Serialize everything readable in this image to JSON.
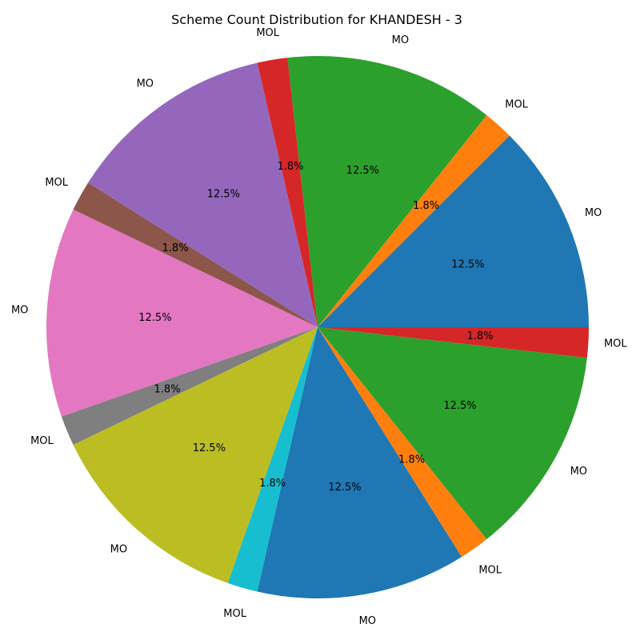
{
  "chart_data": {
    "type": "pie",
    "title": "Scheme Count Distribution for KHANDESH - 3",
    "start_angle_deg": 0,
    "direction": "counterclockwise",
    "slices": [
      {
        "label": "MO",
        "value": 12.5,
        "pct_label": "12.5%",
        "color": "#1f77b4"
      },
      {
        "label": "MOL",
        "value": 1.8,
        "pct_label": "1.8%",
        "color": "#ff7f0e"
      },
      {
        "label": "MO",
        "value": 12.5,
        "pct_label": "12.5%",
        "color": "#2ca02c"
      },
      {
        "label": "MOL",
        "value": 1.8,
        "pct_label": "1.8%",
        "color": "#d62728"
      },
      {
        "label": "MO",
        "value": 12.5,
        "pct_label": "12.5%",
        "color": "#9467bd"
      },
      {
        "label": "MOL",
        "value": 1.8,
        "pct_label": "1.8%",
        "color": "#8c564b"
      },
      {
        "label": "MO",
        "value": 12.5,
        "pct_label": "12.5%",
        "color": "#e377c2"
      },
      {
        "label": "MOL",
        "value": 1.8,
        "pct_label": "1.8%",
        "color": "#7f7f7f"
      },
      {
        "label": "MO",
        "value": 12.5,
        "pct_label": "12.5%",
        "color": "#bcbd22"
      },
      {
        "label": "MOL",
        "value": 1.8,
        "pct_label": "1.8%",
        "color": "#17becf"
      },
      {
        "label": "MO",
        "value": 12.5,
        "pct_label": "12.5%",
        "color": "#1f77b4"
      },
      {
        "label": "MOL",
        "value": 1.8,
        "pct_label": "1.8%",
        "color": "#ff7f0e"
      },
      {
        "label": "MO",
        "value": 12.5,
        "pct_label": "12.5%",
        "color": "#2ca02c"
      },
      {
        "label": "MOL",
        "value": 1.8,
        "pct_label": "1.8%",
        "color": "#d62728"
      }
    ]
  }
}
